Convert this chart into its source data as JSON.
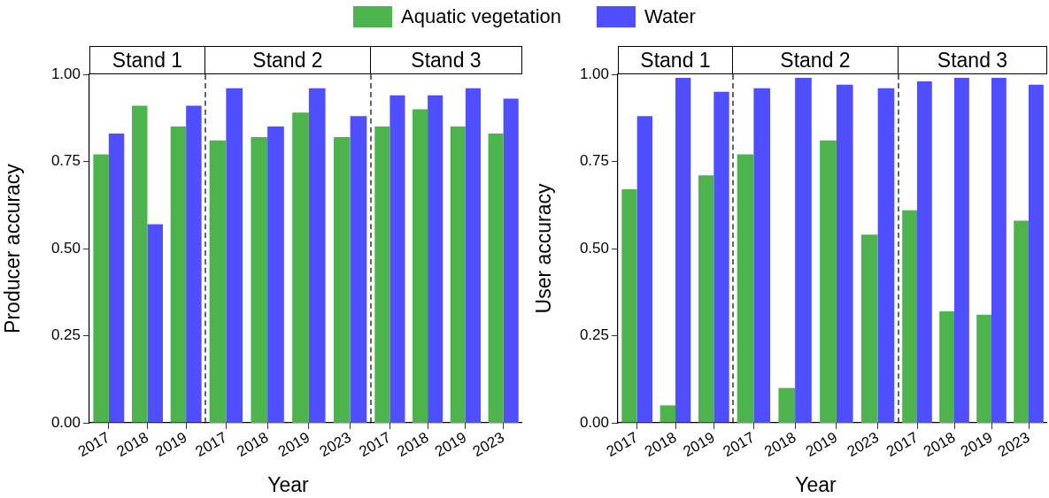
{
  "chart_data": [
    {
      "type": "bar",
      "title": "Stand 1",
      "categories": [
        "2017",
        "2018",
        "2019"
      ],
      "ylabel": "Producer accuracy",
      "legend": "top",
      "ylim": [
        0,
        1
      ],
      "yticks": [
        {
          "value": 0,
          "label": "0.00"
        },
        {
          "value": 0.25,
          "label": "0.25"
        },
        {
          "value": 0.5,
          "label": "0.50"
        },
        {
          "value": 0.75,
          "label": "0.75"
        },
        {
          "value": 1,
          "label": "1.00"
        }
      ],
      "series": [
        {
          "name": "Aquatic vegetation",
          "color": "#4db34d",
          "values": [
            0.77,
            0.91,
            0.85
          ]
        },
        {
          "name": "Water",
          "color": "#4f4fff",
          "values": [
            0.83,
            0.57,
            0.91
          ]
        }
      ]
    },
    {
      "type": "bar",
      "title": "Stand 2",
      "categories": [
        "2017",
        "2018",
        "2019",
        "2023"
      ],
      "xlabel": "Year",
      "tick_labels": "x",
      "ylim": [
        0,
        1
      ],
      "series": [
        {
          "color": "#4db34d",
          "values": [
            0.81,
            0.82,
            0.89,
            0.82
          ]
        },
        {
          "color": "#4f4fff",
          "values": [
            0.96,
            0.85,
            0.96,
            0.88
          ]
        }
      ]
    },
    {
      "type": "bar",
      "title": "Stand 3",
      "categories": [
        "2017",
        "2018",
        "2019",
        "2023"
      ],
      "tick_labels": "x",
      "ylim": [
        0,
        1
      ],
      "series": [
        {
          "color": "#4db34d",
          "values": [
            0.85,
            0.9,
            0.85,
            0.83
          ]
        },
        {
          "color": "#4f4fff",
          "values": [
            0.94,
            0.94,
            0.96,
            0.93
          ]
        }
      ]
    },
    {
      "type": "bar",
      "title": "Stand 1",
      "categories": [
        "2017",
        "2018",
        "2019"
      ],
      "ylabel": "User accuracy",
      "ylim": [
        0,
        1
      ],
      "yticks": [
        {
          "value": 0,
          "label": "0.00"
        },
        {
          "value": 0.25,
          "label": "0.25"
        },
        {
          "value": 0.5,
          "label": "0.50"
        },
        {
          "value": 0.75,
          "label": "0.75"
        },
        {
          "value": 1,
          "label": "1.00"
        }
      ],
      "series": [
        {
          "color": "#4db34d",
          "values": [
            0.67,
            0.05,
            0.71
          ]
        },
        {
          "color": "#4f4fff",
          "values": [
            0.88,
            0.99,
            0.95
          ]
        }
      ]
    },
    {
      "type": "bar",
      "title": "Stand 2",
      "categories": [
        "2017",
        "2018",
        "2019",
        "2023"
      ],
      "xlabel": "Year",
      "tick_labels": "x",
      "ylim": [
        0,
        1
      ],
      "series": [
        {
          "color": "#4db34d",
          "values": [
            0.77,
            0.1,
            0.81,
            0.54
          ]
        },
        {
          "color": "#4f4fff",
          "values": [
            0.96,
            0.99,
            0.97,
            0.96
          ]
        }
      ]
    },
    {
      "type": "bar",
      "title": "Stand 3",
      "categories": [
        "2017",
        "2018",
        "2019",
        "2023"
      ],
      "tick_labels": "x",
      "ylim": [
        0,
        1
      ],
      "series": [
        {
          "color": "#4db34d",
          "values": [
            0.61,
            0.32,
            0.31,
            0.58
          ]
        },
        {
          "color": "#4f4fff",
          "values": [
            0.98,
            0.99,
            0.99,
            0.97
          ]
        }
      ]
    }
  ]
}
